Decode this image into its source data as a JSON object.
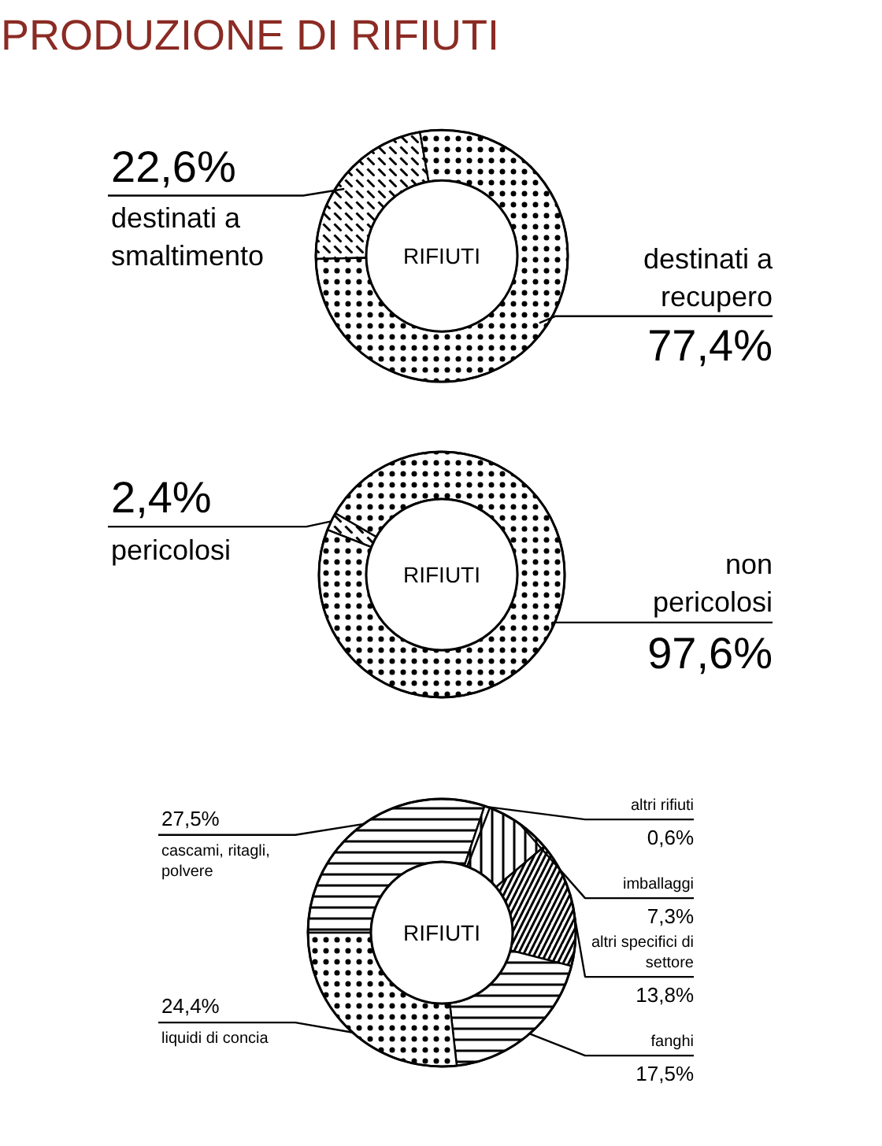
{
  "chart_data": [
    {
      "type": "donut",
      "title": "PRODUZIONE DI RIFIUTI",
      "categories": [
        "destinati a smaltimento",
        "destinati a recupero"
      ],
      "values": [
        22.6,
        77.4
      ],
      "value_labels": [
        "22,6%",
        "77,4%"
      ],
      "colors": [
        "#ffffff",
        "#ffffff"
      ],
      "annotations": [
        "RIFIUTI"
      ]
    },
    {
      "type": "donut",
      "categories": [
        "pericolosi",
        "non pericolosi"
      ],
      "values": [
        2.4,
        97.6
      ],
      "value_labels": [
        "2,4%",
        "97,6%"
      ],
      "colors": [
        "#ffffff",
        "#ffffff"
      ],
      "annotations": [
        "RIFIUTI"
      ]
    },
    {
      "type": "donut",
      "categories": [
        "cascami, ritagli, polvere",
        "altri rifiuti",
        "imballaggi",
        "altri specifici di settore",
        "fanghi",
        "liquidi di concia"
      ],
      "values": [
        27.5,
        0.6,
        7.3,
        13.8,
        17.5,
        24.4
      ],
      "value_labels": [
        "27,5%",
        "0,6%",
        "7,3%",
        "13,8%",
        "17,5%",
        "24,4%"
      ],
      "colors": [
        "#ffffff",
        "#ffffff",
        "#ffffff",
        "#ffffff",
        "#ffffff",
        "#ffffff"
      ],
      "annotations": [
        "RIFIUTI"
      ]
    }
  ]
}
